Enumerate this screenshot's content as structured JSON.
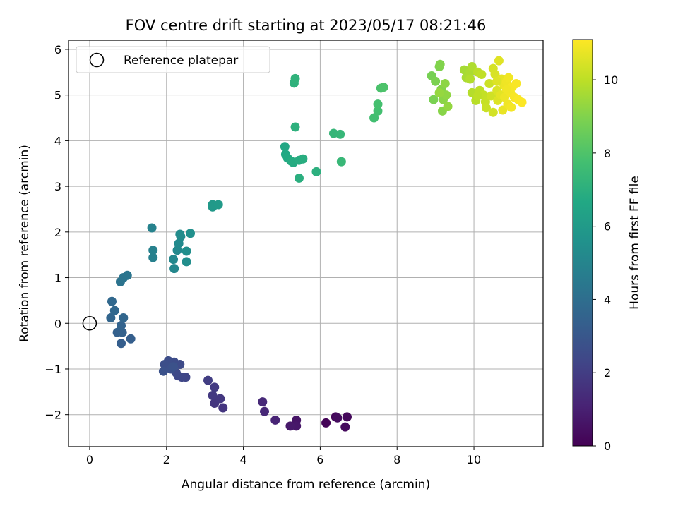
{
  "chart_data": {
    "type": "scatter",
    "title": "FOV centre drift starting at 2023/05/17 08:21:46",
    "xlabel": "Angular distance from reference (arcmin)",
    "ylabel": "Rotation from reference (arcmin)",
    "xlim": [
      -0.55,
      11.8
    ],
    "ylim": [
      -2.7,
      6.2
    ],
    "xticks": [
      0,
      2,
      4,
      6,
      8,
      10
    ],
    "yticks": [
      -2,
      -1,
      0,
      1,
      2,
      3,
      4,
      5,
      6
    ],
    "xtick_labels": [
      "0",
      "2",
      "4",
      "6",
      "8",
      "10"
    ],
    "ytick_labels": [
      "−2",
      "−1",
      "0",
      "1",
      "2",
      "3",
      "4",
      "5",
      "6"
    ],
    "grid": true,
    "legend": {
      "label": "Reference platepar",
      "position": "top-left"
    },
    "reference_point": {
      "x": 0,
      "y": 0
    },
    "colorbar": {
      "label": "Hours from first FF file",
      "min": 0,
      "max": 11.1,
      "colormap": "viridis",
      "ticks": [
        0,
        2,
        4,
        6,
        8,
        10
      ],
      "tick_labels": [
        "0",
        "2",
        "4",
        "6",
        "8",
        "10"
      ]
    },
    "points": [
      {
        "x": 6.15,
        "y": -2.18,
        "c": 0.1
      },
      {
        "x": 6.4,
        "y": -2.05,
        "c": 0.2
      },
      {
        "x": 6.7,
        "y": -2.05,
        "c": 0.25
      },
      {
        "x": 6.65,
        "y": -2.27,
        "c": 0.3
      },
      {
        "x": 6.45,
        "y": -2.07,
        "c": 0.35
      },
      {
        "x": 5.38,
        "y": -2.12,
        "c": 0.6
      },
      {
        "x": 5.38,
        "y": -2.25,
        "c": 0.7
      },
      {
        "x": 5.22,
        "y": -2.25,
        "c": 0.75
      },
      {
        "x": 4.83,
        "y": -2.12,
        "c": 1.1
      },
      {
        "x": 4.55,
        "y": -1.93,
        "c": 1.25
      },
      {
        "x": 4.5,
        "y": -1.72,
        "c": 1.3
      },
      {
        "x": 3.47,
        "y": -1.85,
        "c": 1.7
      },
      {
        "x": 3.25,
        "y": -1.75,
        "c": 1.75
      },
      {
        "x": 3.4,
        "y": -1.65,
        "c": 1.8
      },
      {
        "x": 3.2,
        "y": -1.58,
        "c": 1.85
      },
      {
        "x": 3.25,
        "y": -1.4,
        "c": 1.9
      },
      {
        "x": 3.08,
        "y": -1.25,
        "c": 2.0
      },
      {
        "x": 2.5,
        "y": -1.18,
        "c": 2.3
      },
      {
        "x": 2.4,
        "y": -1.18,
        "c": 2.35
      },
      {
        "x": 2.3,
        "y": -1.15,
        "c": 2.4
      },
      {
        "x": 2.25,
        "y": -1.08,
        "c": 2.45
      },
      {
        "x": 2.35,
        "y": -0.9,
        "c": 2.5
      },
      {
        "x": 2.2,
        "y": -0.85,
        "c": 2.55
      },
      {
        "x": 2.05,
        "y": -0.82,
        "c": 2.6
      },
      {
        "x": 1.95,
        "y": -0.9,
        "c": 2.65
      },
      {
        "x": 2.12,
        "y": -1.0,
        "c": 2.7
      },
      {
        "x": 1.92,
        "y": -1.05,
        "c": 2.75
      },
      {
        "x": 2.18,
        "y": -0.95,
        "c": 2.8
      },
      {
        "x": 0.82,
        "y": -0.44,
        "c": 3.3
      },
      {
        "x": 1.07,
        "y": -0.34,
        "c": 3.35
      },
      {
        "x": 0.72,
        "y": -0.2,
        "c": 3.4
      },
      {
        "x": 0.85,
        "y": -0.2,
        "c": 3.45
      },
      {
        "x": 0.82,
        "y": -0.05,
        "c": 3.5
      },
      {
        "x": 0.55,
        "y": 0.12,
        "c": 3.6
      },
      {
        "x": 0.88,
        "y": 0.12,
        "c": 3.65
      },
      {
        "x": 0.65,
        "y": 0.28,
        "c": 3.7
      },
      {
        "x": 0.58,
        "y": 0.48,
        "c": 3.75
      },
      {
        "x": 0.8,
        "y": 0.91,
        "c": 4.2
      },
      {
        "x": 0.88,
        "y": 1.0,
        "c": 4.25
      },
      {
        "x": 0.98,
        "y": 1.05,
        "c": 4.3
      },
      {
        "x": 1.65,
        "y": 1.44,
        "c": 4.8
      },
      {
        "x": 1.65,
        "y": 1.6,
        "c": 4.85
      },
      {
        "x": 1.62,
        "y": 2.09,
        "c": 4.9
      },
      {
        "x": 2.2,
        "y": 1.2,
        "c": 5.1
      },
      {
        "x": 2.18,
        "y": 1.4,
        "c": 5.15
      },
      {
        "x": 2.28,
        "y": 1.6,
        "c": 5.2
      },
      {
        "x": 2.32,
        "y": 1.75,
        "c": 5.25
      },
      {
        "x": 2.37,
        "y": 1.9,
        "c": 5.3
      },
      {
        "x": 2.35,
        "y": 1.95,
        "c": 5.35
      },
      {
        "x": 2.52,
        "y": 1.35,
        "c": 5.4
      },
      {
        "x": 2.52,
        "y": 1.58,
        "c": 5.45
      },
      {
        "x": 2.62,
        "y": 1.97,
        "c": 5.5
      },
      {
        "x": 3.2,
        "y": 2.55,
        "c": 5.9
      },
      {
        "x": 3.2,
        "y": 2.6,
        "c": 5.95
      },
      {
        "x": 3.35,
        "y": 2.6,
        "c": 6.0
      },
      {
        "x": 5.08,
        "y": 3.87,
        "c": 6.6
      },
      {
        "x": 5.1,
        "y": 3.7,
        "c": 6.65
      },
      {
        "x": 5.15,
        "y": 3.62,
        "c": 6.7
      },
      {
        "x": 5.3,
        "y": 3.52,
        "c": 6.75
      },
      {
        "x": 5.25,
        "y": 3.55,
        "c": 6.8
      },
      {
        "x": 5.45,
        "y": 3.57,
        "c": 6.85
      },
      {
        "x": 5.55,
        "y": 3.6,
        "c": 6.9
      },
      {
        "x": 5.45,
        "y": 3.18,
        "c": 6.95
      },
      {
        "x": 5.9,
        "y": 3.32,
        "c": 7.0
      },
      {
        "x": 5.35,
        "y": 4.3,
        "c": 7.05
      },
      {
        "x": 5.32,
        "y": 5.26,
        "c": 7.1
      },
      {
        "x": 5.35,
        "y": 5.36,
        "c": 7.15
      },
      {
        "x": 6.35,
        "y": 4.16,
        "c": 7.3
      },
      {
        "x": 6.52,
        "y": 4.14,
        "c": 7.35
      },
      {
        "x": 6.55,
        "y": 3.54,
        "c": 7.4
      },
      {
        "x": 7.4,
        "y": 4.5,
        "c": 7.7
      },
      {
        "x": 7.5,
        "y": 4.65,
        "c": 7.75
      },
      {
        "x": 7.5,
        "y": 4.8,
        "c": 7.8
      },
      {
        "x": 7.58,
        "y": 5.15,
        "c": 7.9
      },
      {
        "x": 7.65,
        "y": 5.17,
        "c": 7.95
      },
      {
        "x": 8.9,
        "y": 5.42,
        "c": 8.8
      },
      {
        "x": 8.95,
        "y": 4.9,
        "c": 8.85
      },
      {
        "x": 9.0,
        "y": 5.3,
        "c": 8.9
      },
      {
        "x": 9.1,
        "y": 5.62,
        "c": 8.95
      },
      {
        "x": 9.12,
        "y": 5.67,
        "c": 9.0
      },
      {
        "x": 9.15,
        "y": 5.12,
        "c": 9.05
      },
      {
        "x": 9.18,
        "y": 4.65,
        "c": 9.1
      },
      {
        "x": 9.2,
        "y": 4.9,
        "c": 9.15
      },
      {
        "x": 9.25,
        "y": 5.25,
        "c": 9.2
      },
      {
        "x": 9.28,
        "y": 5.0,
        "c": 9.25
      },
      {
        "x": 9.32,
        "y": 4.75,
        "c": 9.3
      },
      {
        "x": 9.1,
        "y": 5.05,
        "c": 9.35
      },
      {
        "x": 9.75,
        "y": 5.55,
        "c": 9.6
      },
      {
        "x": 9.8,
        "y": 5.38,
        "c": 9.65
      },
      {
        "x": 9.9,
        "y": 5.5,
        "c": 9.7
      },
      {
        "x": 9.95,
        "y": 5.62,
        "c": 9.75
      },
      {
        "x": 9.9,
        "y": 5.35,
        "c": 9.8
      },
      {
        "x": 9.95,
        "y": 5.05,
        "c": 9.85
      },
      {
        "x": 10.05,
        "y": 4.88,
        "c": 9.9
      },
      {
        "x": 10.1,
        "y": 5.5,
        "c": 9.95
      },
      {
        "x": 10.15,
        "y": 5.1,
        "c": 10.0
      },
      {
        "x": 10.2,
        "y": 5.45,
        "c": 10.05
      },
      {
        "x": 10.25,
        "y": 5.0,
        "c": 10.1
      },
      {
        "x": 10.3,
        "y": 4.85,
        "c": 10.15
      },
      {
        "x": 10.32,
        "y": 4.72,
        "c": 10.2
      },
      {
        "x": 10.4,
        "y": 5.25,
        "c": 10.25
      },
      {
        "x": 10.45,
        "y": 4.98,
        "c": 10.3
      },
      {
        "x": 10.5,
        "y": 4.62,
        "c": 10.35
      },
      {
        "x": 10.5,
        "y": 5.58,
        "c": 10.4
      },
      {
        "x": 10.55,
        "y": 5.45,
        "c": 10.45
      },
      {
        "x": 10.6,
        "y": 5.1,
        "c": 10.5
      },
      {
        "x": 10.62,
        "y": 4.88,
        "c": 10.55
      },
      {
        "x": 10.65,
        "y": 5.75,
        "c": 10.6
      },
      {
        "x": 10.7,
        "y": 5.0,
        "c": 10.65
      },
      {
        "x": 10.72,
        "y": 5.35,
        "c": 10.7
      },
      {
        "x": 10.75,
        "y": 4.67,
        "c": 10.75
      },
      {
        "x": 10.78,
        "y": 5.22,
        "c": 10.8
      },
      {
        "x": 10.8,
        "y": 4.95,
        "c": 10.82
      },
      {
        "x": 10.85,
        "y": 5.3,
        "c": 10.85
      },
      {
        "x": 10.88,
        "y": 4.8,
        "c": 10.88
      },
      {
        "x": 10.9,
        "y": 5.38,
        "c": 10.9
      },
      {
        "x": 10.95,
        "y": 5.05,
        "c": 10.93
      },
      {
        "x": 10.97,
        "y": 4.73,
        "c": 10.95
      },
      {
        "x": 11.0,
        "y": 5.18,
        "c": 10.97
      },
      {
        "x": 11.05,
        "y": 4.95,
        "c": 11.0
      },
      {
        "x": 11.1,
        "y": 5.25,
        "c": 11.02
      },
      {
        "x": 11.15,
        "y": 4.9,
        "c": 11.05
      },
      {
        "x": 11.25,
        "y": 4.84,
        "c": 11.08
      },
      {
        "x": 10.1,
        "y": 4.98,
        "c": 10.0
      },
      {
        "x": 10.6,
        "y": 5.3,
        "c": 10.55
      },
      {
        "x": 10.85,
        "y": 5.12,
        "c": 10.9
      }
    ]
  }
}
